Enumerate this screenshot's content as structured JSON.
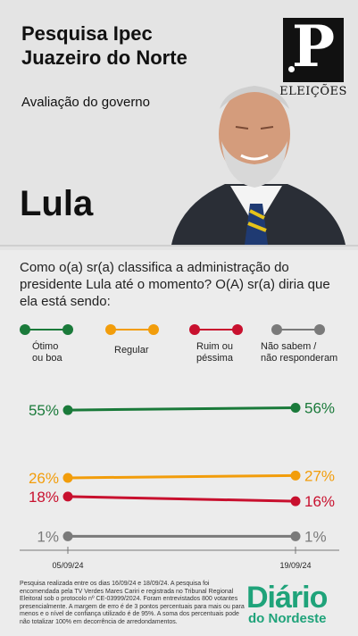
{
  "header": {
    "title": "Pesquisa Ipec\nJuazeiro do Norte",
    "subtitle": "Avaliação do governo",
    "candidate": "Lula",
    "logo_letter": "P",
    "logo_text": "ELEIÇÕES"
  },
  "question": "Como o(a) sr(a) classifica a administração do presidente Lula até o momento? O(A) sr(a) diria que ela está sendo:",
  "legend": [
    {
      "label": "Ótimo\nou boa",
      "color": "#1a7a3a"
    },
    {
      "label": "Regular",
      "color": "#f29d0b"
    },
    {
      "label": "Ruim ou\npéssima",
      "color": "#c8102e"
    },
    {
      "label": "Não sabem /\nnão responderam",
      "color": "#7a7a7a"
    }
  ],
  "chart_data": {
    "type": "line",
    "x": [
      "05/09/24",
      "19/09/24"
    ],
    "series": [
      {
        "name": "Ótimo ou boa",
        "values": [
          55,
          56
        ],
        "color": "#1a7a3a"
      },
      {
        "name": "Regular",
        "values": [
          26,
          27
        ],
        "color": "#f29d0b"
      },
      {
        "name": "Ruim ou péssima",
        "values": [
          18,
          16
        ],
        "color": "#c8102e"
      },
      {
        "name": "Não sabem / não responderam",
        "values": [
          1,
          1
        ],
        "color": "#7a7a7a"
      }
    ],
    "value_suffix": "%",
    "ylim": [
      0,
      60
    ],
    "grid": false,
    "legend_position": "top"
  },
  "footnote": "Pesquisa realizada entre os dias 16/09/24 e 18/09/24. A pesquisa foi encomendada pela TV Verdes Mares Cariri e registrada no Tribunal Regional Eleitoral sob o protocolo nº CE-03999/2024. Foram entrevistados 800 votantes presencialmente. A margem de erro é de 3 pontos percentuais para mais ou para menos e o nível de confiança utilizado é de 95%. A soma dos percentuais pode não totalizar 100% em decorrência de arredondamentos.",
  "brand": {
    "line1": "Diário",
    "line2": "do Nordeste"
  }
}
